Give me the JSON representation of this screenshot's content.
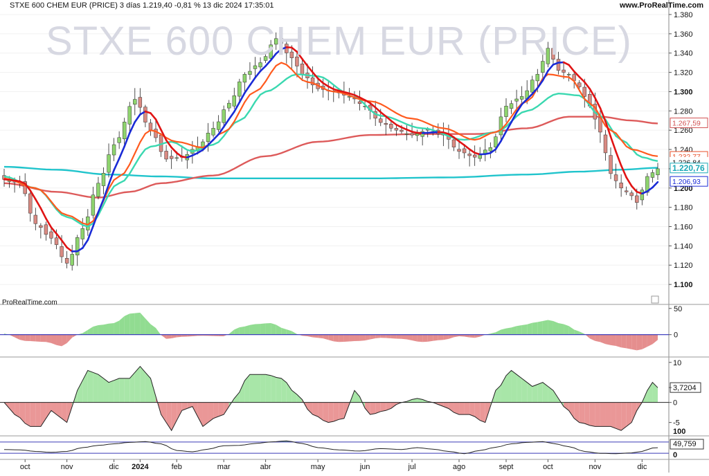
{
  "header": {
    "symbol": "STXE 600 CHEM EUR (PRICE) 3 días 1.219,40 -0,81 % 13 dic 2024 17:35:01",
    "site": "www.ProRealTime.com",
    "watermark": "STXE 600 CHEM EUR (PRICE)",
    "credit": "ProRealTime.com"
  },
  "chart_data": [
    {
      "type": "candlestick",
      "panel": "price",
      "title": "STXE 600 CHEM EUR (PRICE)",
      "ylim": [
        1.085,
        1.385
      ],
      "y_ticks": [
        "1.380",
        "1.360",
        "1.340",
        "1.320",
        "1.300",
        "1.280",
        "1.260",
        "1.240",
        "1.220",
        "1.200",
        "1.180",
        "1.160",
        "1.140",
        "1.120",
        "1.100"
      ],
      "x_tick_labels": [
        "oct",
        "nov",
        "dic",
        "2024",
        "feb",
        "mar",
        "abr",
        "may",
        "jun",
        "jul",
        "ago",
        "sept",
        "oct",
        "nov",
        "dic"
      ],
      "x_tick_index": [
        4,
        12,
        21,
        26,
        33,
        42,
        50,
        60,
        69,
        78,
        87,
        96,
        104,
        113,
        122
      ],
      "n_bars": 126,
      "close_anchors": [
        [
          0,
          1.209
        ],
        [
          3,
          1.205
        ],
        [
          6,
          1.163
        ],
        [
          9,
          1.148
        ],
        [
          12,
          1.122
        ],
        [
          15,
          1.158
        ],
        [
          18,
          1.205
        ],
        [
          21,
          1.245
        ],
        [
          25,
          1.292
        ],
        [
          28,
          1.26
        ],
        [
          31,
          1.23
        ],
        [
          34,
          1.232
        ],
        [
          37,
          1.243
        ],
        [
          40,
          1.262
        ],
        [
          43,
          1.288
        ],
        [
          46,
          1.318
        ],
        [
          49,
          1.33
        ],
        [
          52,
          1.355
        ],
        [
          55,
          1.335
        ],
        [
          57,
          1.318
        ],
        [
          60,
          1.303
        ],
        [
          63,
          1.3
        ],
        [
          66,
          1.295
        ],
        [
          69,
          1.285
        ],
        [
          72,
          1.268
        ],
        [
          75,
          1.26
        ],
        [
          78,
          1.255
        ],
        [
          81,
          1.26
        ],
        [
          84,
          1.255
        ],
        [
          87,
          1.238
        ],
        [
          90,
          1.232
        ],
        [
          93,
          1.242
        ],
        [
          96,
          1.285
        ],
        [
          99,
          1.295
        ],
        [
          102,
          1.318
        ],
        [
          104,
          1.345
        ],
        [
          106,
          1.322
        ],
        [
          108,
          1.318
        ],
        [
          110,
          1.305
        ],
        [
          112,
          1.285
        ],
        [
          114,
          1.258
        ],
        [
          116,
          1.215
        ],
        [
          118,
          1.2
        ],
        [
          120,
          1.192
        ],
        [
          121,
          1.185
        ],
        [
          122,
          1.198
        ],
        [
          123,
          1.212
        ],
        [
          125,
          1.22
        ]
      ],
      "series": [
        {
          "name": "close",
          "color": "#228822"
        },
        {
          "name": "ma_fast",
          "color_up": "#1a2bd6",
          "color_down": "#e01414"
        },
        {
          "name": "ma_mid",
          "color": "#ff5a1e"
        },
        {
          "name": "ma_medium",
          "color": "#3ad8b0"
        },
        {
          "name": "ma_long",
          "color": "#dd5a5a"
        },
        {
          "name": "ma_200",
          "color": "#20c4cc"
        }
      ],
      "price_labels": [
        {
          "text": "1.267,59",
          "value": 1.2676,
          "bg": "#ffffff",
          "fg": "#d05050",
          "border": "#d05050"
        },
        {
          "text": "1.232,77",
          "value": 1.2328,
          "bg": "#ffffff",
          "fg": "#e8502a",
          "border": "#e8502a"
        },
        {
          "text": "1.226,84",
          "value": 1.2268,
          "bg": "#ffffff",
          "fg": "#111111",
          "border": "#ffffff"
        },
        {
          "text": "1.220,76",
          "value": 1.2208,
          "bg": "#ffffff",
          "fg": "#1aa8b6",
          "border": "#1aa8b6"
        },
        {
          "text": "1.206,93",
          "value": 1.2069,
          "bg": "#ffffff",
          "fg": "#1a2bd6",
          "border": "#1a2bd6"
        }
      ],
      "colors": {
        "up": "#8ed46e",
        "down": "#d98a82",
        "wick": "#222222"
      }
    },
    {
      "type": "area",
      "panel": "oscillator1",
      "y_ticks": [
        "50",
        "0"
      ],
      "ylim": [
        -40,
        55
      ],
      "zero_line_color": "#2c2cb8",
      "pos_color": "#7ed67e",
      "neg_color": "#e07a7a",
      "anchors": [
        [
          0,
          2
        ],
        [
          4,
          -12
        ],
        [
          8,
          -14
        ],
        [
          11,
          -22
        ],
        [
          14,
          0
        ],
        [
          18,
          18
        ],
        [
          21,
          22
        ],
        [
          24,
          40
        ],
        [
          26,
          42
        ],
        [
          28,
          20
        ],
        [
          31,
          -8
        ],
        [
          34,
          -4
        ],
        [
          38,
          -2
        ],
        [
          42,
          -3
        ],
        [
          45,
          14
        ],
        [
          48,
          20
        ],
        [
          51,
          22
        ],
        [
          54,
          10
        ],
        [
          57,
          -2
        ],
        [
          60,
          -6
        ],
        [
          64,
          -14
        ],
        [
          68,
          -12
        ],
        [
          72,
          -6
        ],
        [
          76,
          -8
        ],
        [
          80,
          -14
        ],
        [
          84,
          -10
        ],
        [
          87,
          -3
        ],
        [
          90,
          -6
        ],
        [
          93,
          2
        ],
        [
          96,
          12
        ],
        [
          99,
          18
        ],
        [
          102,
          24
        ],
        [
          104,
          28
        ],
        [
          107,
          20
        ],
        [
          110,
          6
        ],
        [
          113,
          -12
        ],
        [
          116,
          -20
        ],
        [
          119,
          -26
        ],
        [
          121,
          -30
        ],
        [
          122,
          -28
        ],
        [
          124,
          -18
        ],
        [
          125,
          -10
        ]
      ]
    },
    {
      "type": "line",
      "panel": "oscillator2",
      "y_ticks": [
        "10",
        "3,7204",
        "0",
        "-5"
      ],
      "current_label": "3,7204",
      "ylim": [
        -8,
        11
      ],
      "line_color": "#222222",
      "pos_color": "#9ee39e",
      "neg_color": "#e88c8c",
      "anchors": [
        [
          0,
          0
        ],
        [
          2,
          -3
        ],
        [
          5,
          -6
        ],
        [
          7,
          -6
        ],
        [
          9,
          -2
        ],
        [
          10,
          -3
        ],
        [
          12,
          -5
        ],
        [
          14,
          3
        ],
        [
          16,
          8
        ],
        [
          18,
          7
        ],
        [
          20,
          5
        ],
        [
          22,
          6
        ],
        [
          24,
          6
        ],
        [
          26,
          9
        ],
        [
          28,
          6
        ],
        [
          30,
          -3
        ],
        [
          32,
          -7
        ],
        [
          34,
          -2
        ],
        [
          36,
          -1
        ],
        [
          38,
          -6
        ],
        [
          40,
          -4
        ],
        [
          42,
          -3
        ],
        [
          44,
          1
        ],
        [
          47,
          7
        ],
        [
          50,
          7
        ],
        [
          53,
          6
        ],
        [
          56,
          2
        ],
        [
          59,
          -3
        ],
        [
          62,
          -5
        ],
        [
          65,
          -4
        ],
        [
          67,
          3
        ],
        [
          70,
          -3
        ],
        [
          73,
          -2
        ],
        [
          76,
          0
        ],
        [
          79,
          1
        ],
        [
          82,
          0
        ],
        [
          84,
          -1
        ],
        [
          87,
          -3
        ],
        [
          89,
          -3
        ],
        [
          92,
          -5
        ],
        [
          94,
          3
        ],
        [
          97,
          8
        ],
        [
          99,
          6
        ],
        [
          101,
          4
        ],
        [
          103,
          5
        ],
        [
          105,
          3
        ],
        [
          107,
          -1
        ],
        [
          110,
          -5
        ],
        [
          113,
          -6
        ],
        [
          116,
          -6
        ],
        [
          118,
          -7
        ],
        [
          120,
          -5
        ],
        [
          121,
          -2
        ],
        [
          122,
          0
        ],
        [
          123,
          3
        ],
        [
          124,
          5
        ],
        [
          125,
          3.7
        ]
      ]
    },
    {
      "type": "line",
      "panel": "oscillator3",
      "y_ticks": [
        "100",
        "49,759",
        "0"
      ],
      "current_label": "49,759",
      "ylim": [
        -5,
        105
      ],
      "upper_level": 80,
      "lower_level": 20,
      "level_color": "#3a3ab8",
      "line_color": "#222222",
      "anchors": [
        [
          0,
          40
        ],
        [
          3,
          38
        ],
        [
          6,
          30
        ],
        [
          9,
          25
        ],
        [
          12,
          30
        ],
        [
          15,
          50
        ],
        [
          18,
          62
        ],
        [
          21,
          70
        ],
        [
          24,
          78
        ],
        [
          27,
          82
        ],
        [
          30,
          70
        ],
        [
          33,
          35
        ],
        [
          36,
          28
        ],
        [
          39,
          42
        ],
        [
          42,
          60
        ],
        [
          45,
          62
        ],
        [
          48,
          72
        ],
        [
          51,
          80
        ],
        [
          54,
          86
        ],
        [
          57,
          72
        ],
        [
          60,
          50
        ],
        [
          64,
          38
        ],
        [
          68,
          32
        ],
        [
          72,
          45
        ],
        [
          76,
          40
        ],
        [
          79,
          50
        ],
        [
          82,
          42
        ],
        [
          85,
          30
        ],
        [
          88,
          18
        ],
        [
          91,
          35
        ],
        [
          94,
          52
        ],
        [
          97,
          70
        ],
        [
          100,
          78
        ],
        [
          103,
          82
        ],
        [
          105,
          72
        ],
        [
          108,
          55
        ],
        [
          111,
          30
        ],
        [
          114,
          20
        ],
        [
          117,
          18
        ],
        [
          120,
          22
        ],
        [
          122,
          30
        ],
        [
          124,
          48
        ],
        [
          125,
          49.8
        ]
      ]
    }
  ]
}
